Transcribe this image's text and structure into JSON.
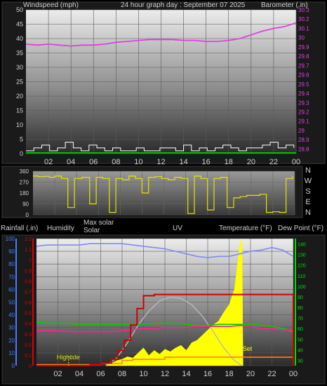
{
  "chart_data": [
    {
      "type": "line",
      "panel": "wind-barometer",
      "title": "24 hour graph day : September 07 2025",
      "ylabel_left": "Windspeed (mph)",
      "ylabel_right": "Barometer (.in)",
      "x_ticks": [
        "02",
        "04",
        "06",
        "08",
        "10",
        "12",
        "14",
        "16",
        "18",
        "20",
        "22",
        "00"
      ],
      "y_left_ticks": [
        "0",
        "5",
        "10",
        "15",
        "20",
        "25",
        "30",
        "35",
        "40",
        "45",
        "50"
      ],
      "y_left_range": [
        0,
        50
      ],
      "y_right_ticks": [
        "28.8",
        "28.9",
        "29",
        "29.1",
        "29.2",
        "29.3",
        "29.4",
        "29.5",
        "29.6",
        "29.7",
        "29.8",
        "29.9",
        "30",
        "30.1",
        "30.2",
        "30.3"
      ],
      "y_right_range": [
        28.75,
        30.3
      ],
      "grid": true,
      "colors": {
        "wind": "#ffffff",
        "gust": "#00d000",
        "barometer": "#e040e0",
        "left_axis_text": "#d0d0d0",
        "right_axis_text": "#e040e0"
      },
      "series": [
        {
          "key": "barometer",
          "axis": "right",
          "x": [
            0,
            1,
            2,
            3,
            4,
            5,
            6,
            7,
            8,
            9,
            10,
            11,
            12,
            13,
            14,
            15,
            16,
            17,
            18,
            19,
            20,
            21,
            22,
            23,
            24
          ],
          "values": [
            29.93,
            29.92,
            29.93,
            29.92,
            29.91,
            29.92,
            29.92,
            29.93,
            29.95,
            29.96,
            29.97,
            29.98,
            29.98,
            29.98,
            29.97,
            29.97,
            29.96,
            29.96,
            29.97,
            29.99,
            30.03,
            30.07,
            30.1,
            30.12,
            30.16
          ]
        },
        {
          "key": "wind",
          "axis": "left",
          "x": [
            0,
            0.7,
            1.4,
            2.1,
            2.8,
            3.5,
            4.2,
            4.9,
            5.6,
            6.3,
            7.0,
            7.7,
            8.4,
            9.1,
            9.8,
            10.5,
            11.2,
            11.9,
            12.6,
            13.3,
            14.0,
            14.7,
            15.4,
            16.1,
            16.8,
            17.5,
            18.2,
            18.9,
            19.6,
            20.3,
            21.0,
            21.7,
            22.4,
            23.1,
            23.8
          ],
          "values": [
            1,
            2,
            3,
            1,
            2,
            4,
            2,
            1,
            3,
            2,
            1,
            2,
            1,
            1,
            2,
            1,
            1,
            2,
            2,
            1,
            3,
            1,
            2,
            1,
            2,
            3,
            2,
            1,
            2,
            2,
            3,
            4,
            2,
            3,
            2
          ]
        },
        {
          "key": "gust",
          "axis": "left",
          "x": [
            0,
            24
          ],
          "values": [
            0.3,
            0.3
          ]
        }
      ]
    },
    {
      "type": "line",
      "panel": "wind-direction",
      "y_ticks": [
        "360",
        "270",
        "180",
        "90",
        "0"
      ],
      "y_range": [
        0,
        360
      ],
      "compass_labels": [
        "N",
        "W",
        "S",
        "E",
        "N"
      ],
      "grid": true,
      "colors": {
        "direction": "#e8e000"
      },
      "series": [
        {
          "key": "direction",
          "x": [
            0,
            0.5,
            1,
            1.5,
            2,
            2.6,
            3.2,
            3.8,
            4.5,
            5.2,
            5.8,
            6.4,
            7.0,
            7.6,
            8.2,
            8.8,
            9.4,
            10.0,
            10.6,
            11.2,
            11.8,
            12.4,
            13.0,
            13.6,
            14.2,
            14.8,
            15.4,
            16.0,
            16.6,
            17.2,
            17.8,
            18.4,
            19.0,
            19.6,
            20.2,
            20.8,
            21.4,
            22.0,
            22.6,
            23.2,
            23.8
          ],
          "values": [
            320,
            315,
            318,
            310,
            320,
            300,
            60,
            300,
            310,
            90,
            310,
            300,
            20,
            300,
            290,
            320,
            300,
            180,
            310,
            315,
            300,
            290,
            310,
            300,
            10,
            320,
            300,
            40,
            300,
            310,
            60,
            140,
            150,
            160,
            160,
            170,
            20,
            25,
            20,
            300,
            320
          ]
        }
      ]
    },
    {
      "type": "line",
      "panel": "rain-temp-solar",
      "labels": {
        "rainfall": "Rainfall (.in)",
        "humidity": "Humidity",
        "max_solar": "Max solar",
        "solar": "Solar",
        "uv": "UV",
        "temperature": "Temperature (°F)",
        "dew_point": "Dew Point (°F)",
        "hightide": "Hightide",
        "set": "Set"
      },
      "x_ticks": [
        "02",
        "04",
        "06",
        "08",
        "10",
        "12",
        "14",
        "16",
        "18",
        "20",
        "22",
        "00"
      ],
      "rainfall_ticks": [
        "0",
        "0.1",
        "0.2",
        "0.3",
        "0.4",
        "0.5",
        "0.6",
        "0.7",
        "0.8",
        "0.9",
        "1",
        "1.1",
        "1.2"
      ],
      "rainfall_range": [
        0,
        1.2
      ],
      "humidity_ticks": [
        "0",
        "10",
        "20",
        "30",
        "40",
        "50",
        "60",
        "70",
        "80",
        "90",
        "100"
      ],
      "humidity_range": [
        0,
        100
      ],
      "temperature_ticks": [
        "30",
        "40",
        "50",
        "60",
        "70",
        "80",
        "90",
        "100",
        "110",
        "120",
        "130",
        "140"
      ],
      "temperature_range": [
        25,
        145
      ],
      "grid": true,
      "colors": {
        "rainfall_axis": "#e00000",
        "humidity_axis": "#4080ff",
        "temperature_axis": "#00e000",
        "humidity": "#7f8cf0",
        "max_solar": "#b8b8b8",
        "solar": "#ffff00",
        "uv": "#d00000",
        "temperature": "#ff2090",
        "dew_point": "#00d000",
        "rain": "#ff8020",
        "hightide": "#e0e000"
      },
      "series": [
        {
          "key": "humidity",
          "axis": "humidity",
          "x": [
            0,
            1,
            2,
            3,
            4,
            5,
            6,
            7,
            8,
            9,
            10,
            11,
            12,
            13,
            14,
            15,
            16,
            17,
            18,
            19,
            20,
            21,
            22,
            23,
            24
          ],
          "values": [
            94,
            95,
            95,
            95,
            95,
            96,
            96,
            96,
            96,
            95,
            94,
            93,
            92,
            90,
            88,
            86,
            85,
            86,
            86,
            88,
            90,
            91,
            93,
            91,
            86
          ]
        },
        {
          "key": "temperature",
          "axis": "temperature",
          "x": [
            0,
            1,
            2,
            3,
            4,
            5,
            6,
            7,
            8,
            9,
            10,
            11,
            12,
            13,
            14,
            15,
            16,
            17,
            18,
            19,
            20,
            21,
            22,
            23,
            24
          ],
          "values": [
            58,
            58,
            58,
            57,
            57,
            57,
            57,
            57,
            58,
            59,
            60,
            60,
            61,
            61,
            61,
            62,
            62,
            62,
            62,
            63,
            62,
            60,
            60,
            59,
            58
          ]
        },
        {
          "key": "dew_point",
          "axis": "temperature",
          "x": [
            0,
            1,
            2,
            3,
            4,
            5,
            6,
            7,
            8,
            9,
            10,
            11,
            12,
            13,
            14,
            15,
            16,
            17,
            18,
            19,
            20,
            21,
            22,
            23,
            24
          ],
          "values": [
            66,
            65,
            65,
            65,
            64,
            64,
            64,
            64,
            64,
            64,
            64,
            65,
            65,
            65,
            64,
            63,
            63,
            64,
            64,
            64,
            64,
            63,
            62,
            60,
            57
          ]
        },
        {
          "key": "max_solar",
          "axis": "humidity",
          "x": [
            6.5,
            7.5,
            8.5,
            9.5,
            10.5,
            11.5,
            12.5,
            13.5,
            14.5,
            15.5,
            16.5,
            17.5,
            18.5,
            19.2
          ],
          "values": [
            0,
            6,
            18,
            32,
            43,
            51,
            54,
            53,
            48,
            39,
            27,
            14,
            4,
            0
          ]
        },
        {
          "key": "uv",
          "axis": "humidity",
          "x": [
            0,
            2,
            4,
            5,
            6,
            7,
            7.6,
            8.2,
            8.8,
            9.4,
            10,
            11,
            12,
            13,
            14,
            15,
            16,
            17,
            18,
            19,
            19.5,
            21,
            23,
            24
          ],
          "values": [
            0,
            0,
            0,
            1,
            2,
            5,
            12,
            20,
            32,
            45,
            55,
            56,
            56,
            56,
            56,
            56,
            56,
            56,
            56,
            56,
            56,
            56,
            56,
            0
          ]
        },
        {
          "key": "rain",
          "axis": "rainfall",
          "x": [
            0,
            4,
            6,
            7,
            8,
            9,
            10,
            11,
            12,
            13,
            14,
            15,
            16,
            17,
            18,
            19,
            24
          ],
          "values": [
            0.01,
            0.01,
            0.02,
            0.02,
            0.05,
            0.06,
            0.06,
            0.06,
            0.08,
            0.08,
            0.08,
            0.08,
            0.08,
            0.08,
            0.08,
            0.08,
            0.08
          ]
        },
        {
          "key": "solar",
          "axis": "humidity",
          "type": "area",
          "x": [
            6.5,
            7.0,
            7.5,
            8.0,
            8.5,
            9.0,
            9.5,
            10.0,
            10.5,
            11.0,
            11.5,
            12.0,
            12.5,
            13.0,
            13.5,
            14.0,
            14.5,
            15.0,
            15.5,
            16.0,
            16.5,
            17.0,
            17.5,
            18.0,
            18.5,
            19.0,
            19.2,
            19.3
          ],
          "values": [
            1,
            2,
            4,
            5,
            7,
            6,
            10,
            14,
            8,
            12,
            9,
            13,
            11,
            14,
            16,
            12,
            18,
            20,
            24,
            28,
            32,
            35,
            42,
            48,
            60,
            95,
            100,
            0
          ]
        }
      ],
      "markers": [
        {
          "key": "hightide",
          "x": 3.0
        },
        {
          "key": "set",
          "x": 19.2
        }
      ]
    }
  ]
}
